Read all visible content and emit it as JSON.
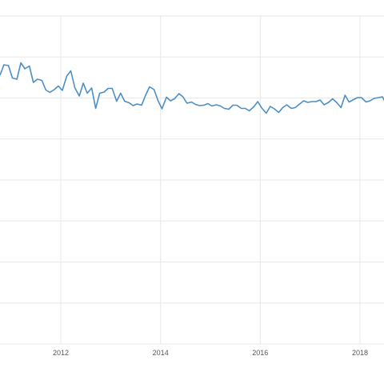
{
  "colors": {
    "line": "#4d8ec4",
    "grid": "#e8e8e8",
    "text": "#555555"
  },
  "chart_data": {
    "type": "line",
    "title": "",
    "xlabel": "",
    "ylabel": "",
    "grid": true,
    "legend": "none",
    "x_ticks": [
      {
        "value": 2012.0,
        "label": "2012"
      },
      {
        "value": 2014.0,
        "label": "2014"
      },
      {
        "value": 2016.0,
        "label": "2016"
      },
      {
        "value": 2018.0,
        "label": "2018"
      }
    ],
    "x_range": [
      2010.78,
      2018.5
    ],
    "y_range": [
      0,
      8.2
    ],
    "series": [
      {
        "x": [
          2010.78,
          2010.86,
          2010.95,
          2011.03,
          2011.12,
          2011.2,
          2011.28,
          2011.37,
          2011.45,
          2011.53,
          2011.62,
          2011.7,
          2011.78,
          2011.87,
          2011.95,
          2012.03,
          2012.12,
          2012.2,
          2012.28,
          2012.37,
          2012.45,
          2012.53,
          2012.62,
          2012.7,
          2012.78,
          2012.87,
          2012.95,
          2013.03,
          2013.12,
          2013.2,
          2013.28,
          2013.37,
          2013.45,
          2013.53,
          2013.62,
          2013.7,
          2013.78,
          2013.87,
          2013.95,
          2014.03,
          2014.12,
          2014.2,
          2014.28,
          2014.37,
          2014.45,
          2014.53,
          2014.62,
          2014.7,
          2014.78,
          2014.87,
          2014.95,
          2015.03,
          2015.12,
          2015.2,
          2015.28,
          2015.37,
          2015.45,
          2015.53,
          2015.62,
          2015.7,
          2015.78,
          2015.87,
          2015.95,
          2016.03,
          2016.12,
          2016.2,
          2016.28,
          2016.37,
          2016.45,
          2016.53,
          2016.62,
          2016.7,
          2016.78,
          2016.87,
          2016.95,
          2017.03,
          2017.12,
          2017.2,
          2017.28,
          2017.37,
          2017.45,
          2017.53,
          2017.62,
          2017.7,
          2017.78,
          2017.87,
          2017.95,
          2018.03,
          2018.12,
          2018.2,
          2018.28,
          2018.37,
          2018.45,
          2018.5
        ],
        "values": [
          6.72,
          6.98,
          6.96,
          6.65,
          6.62,
          7.03,
          6.88,
          6.95,
          6.54,
          6.62,
          6.59,
          6.35,
          6.29,
          6.36,
          6.45,
          6.34,
          6.7,
          6.83,
          6.41,
          6.2,
          6.52,
          6.27,
          6.4,
          5.89,
          6.27,
          6.3,
          6.39,
          6.39,
          6.07,
          6.27,
          6.07,
          6.03,
          5.96,
          6.0,
          5.97,
          6.22,
          6.43,
          6.36,
          6.08,
          5.88,
          6.17,
          6.08,
          6.13,
          6.26,
          6.18,
          6.02,
          6.05,
          5.99,
          5.96,
          5.97,
          6.01,
          5.95,
          5.98,
          5.95,
          5.89,
          5.87,
          5.97,
          5.97,
          5.89,
          5.89,
          5.83,
          5.93,
          6.06,
          5.9,
          5.77,
          5.94,
          5.88,
          5.79,
          5.91,
          5.98,
          5.89,
          5.91,
          5.99,
          6.08,
          6.04,
          6.06,
          6.06,
          6.1,
          5.98,
          6.04,
          6.13,
          6.04,
          5.91,
          6.22,
          6.05,
          6.11,
          6.16,
          6.16,
          6.05,
          6.08,
          6.14,
          6.16,
          6.18,
          6.06
        ]
      }
    ]
  }
}
